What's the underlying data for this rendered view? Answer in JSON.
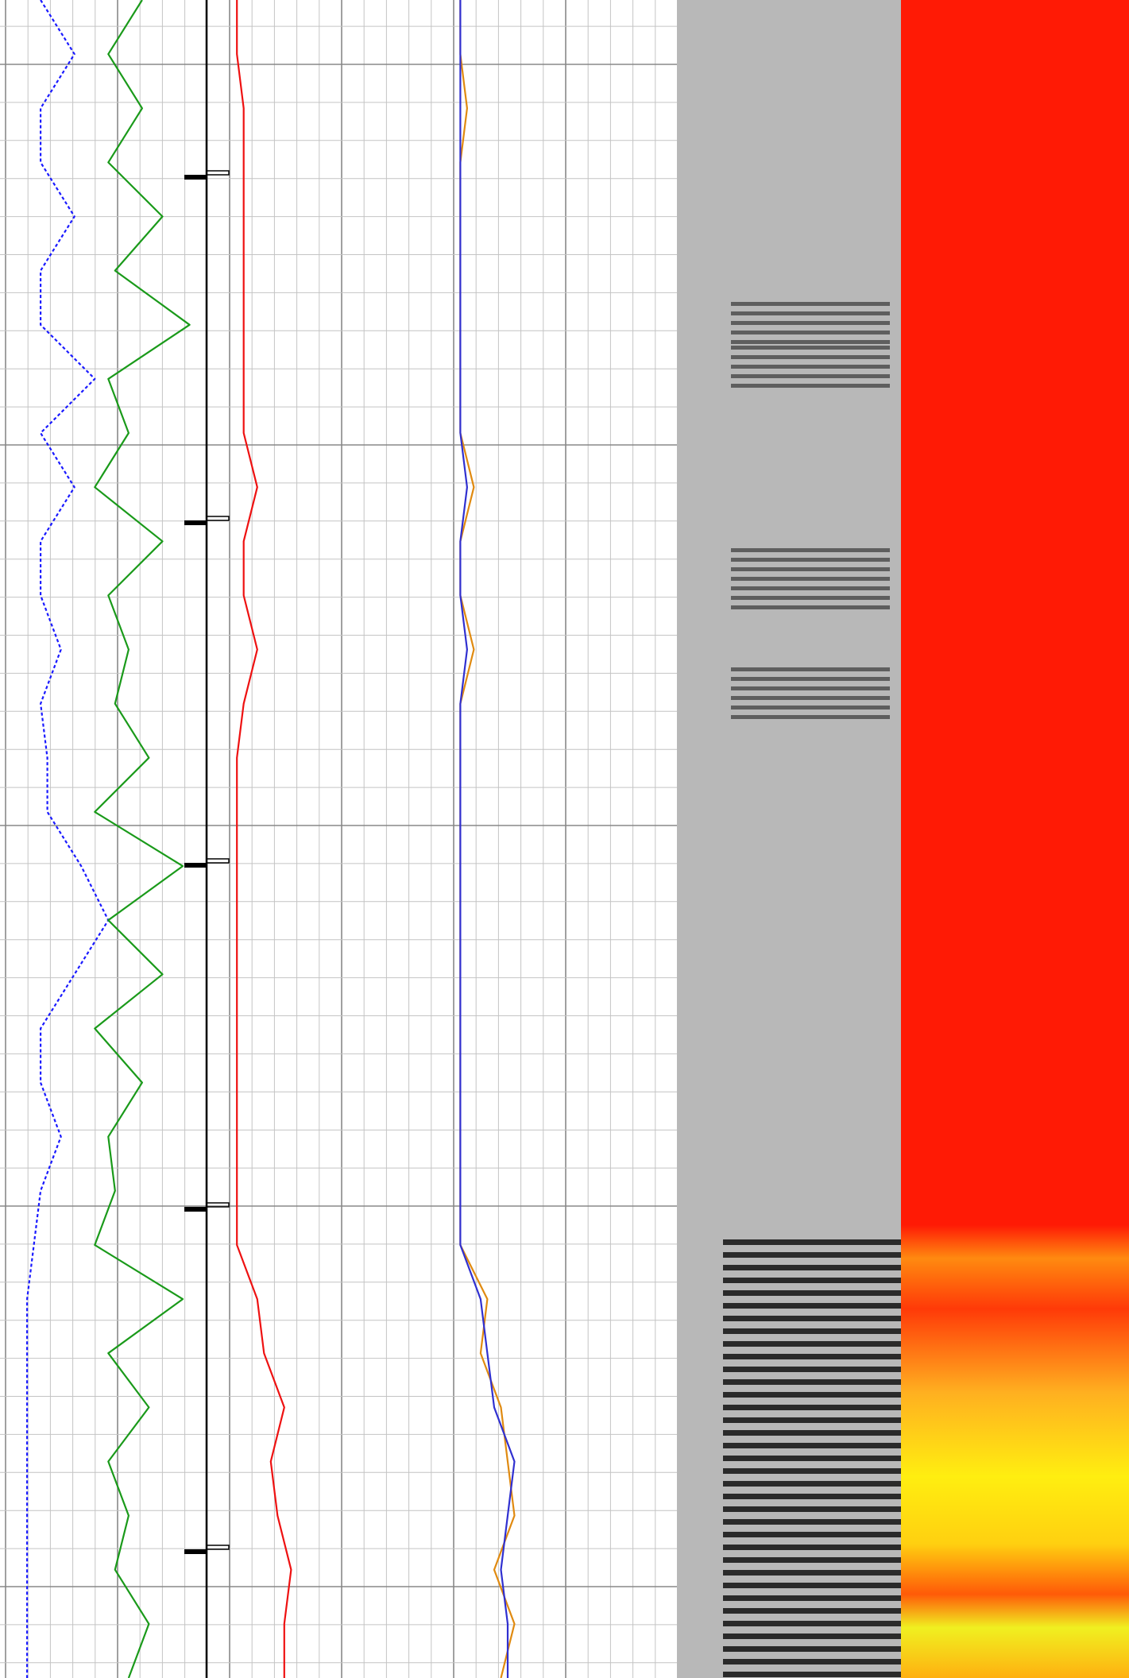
{
  "chart_data": {
    "type": "line",
    "categories": [
      null,
      null,
      null,
      null,
      null,
      null,
      null,
      null,
      null,
      null,
      null,
      null,
      null,
      null,
      null,
      null,
      null,
      null,
      null,
      null,
      null,
      null,
      null,
      null,
      null,
      null,
      null,
      null,
      null,
      null,
      null,
      null
    ],
    "xlim": [
      0,
      100
    ],
    "series": [
      {
        "color": "#1a1aff",
        "dashed": true,
        "values": [
          6,
          11,
          6,
          6,
          11,
          6,
          6,
          14,
          6,
          11,
          6,
          6,
          9,
          6,
          7,
          7,
          12,
          16,
          11,
          6,
          6,
          9,
          6,
          5,
          4,
          4,
          4,
          4,
          4,
          4,
          4,
          4
        ]
      },
      {
        "color": "#1a9a1a",
        "values": [
          21,
          16,
          21,
          16,
          24,
          17,
          28,
          16,
          19,
          14,
          24,
          16,
          19,
          17,
          22,
          14,
          27,
          16,
          24,
          14,
          21,
          16,
          17,
          14,
          27,
          16,
          22,
          16,
          19,
          17,
          22,
          19
        ]
      },
      {
        "color": "#ee1111",
        "values": [
          35,
          35,
          36,
          36,
          36,
          36,
          36,
          36,
          36,
          38,
          36,
          36,
          38,
          36,
          35,
          35,
          35,
          35,
          35,
          35,
          35,
          35,
          35,
          35,
          38,
          39,
          42,
          40,
          41,
          43,
          42,
          42
        ]
      },
      {
        "color": "#e08a10",
        "values": [
          68,
          68,
          69,
          68,
          68,
          68,
          68,
          68,
          68,
          70,
          68,
          68,
          70,
          68,
          68,
          68,
          68,
          68,
          68,
          68,
          68,
          68,
          68,
          68,
          72,
          71,
          74,
          75,
          76,
          73,
          76,
          74
        ]
      },
      {
        "color": "#3030d0",
        "values": [
          68,
          68,
          68,
          68,
          68,
          68,
          68,
          68,
          68,
          69,
          68,
          68,
          69,
          68,
          68,
          68,
          68,
          68,
          68,
          68,
          68,
          68,
          68,
          68,
          71,
          72,
          73,
          76,
          75,
          74,
          75,
          75
        ]
      }
    ]
  }
}
